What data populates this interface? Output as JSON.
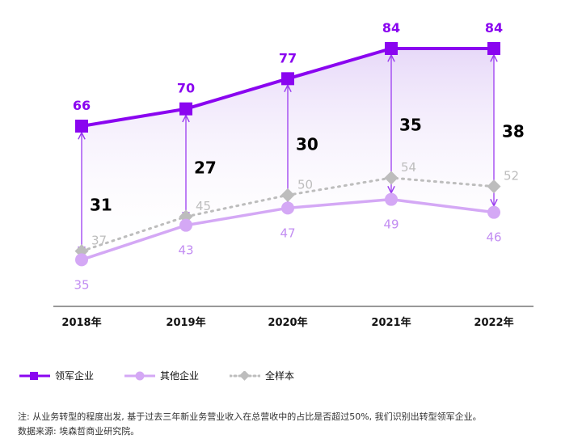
{
  "chart_data": {
    "type": "line",
    "categories": [
      "2018年",
      "2019年",
      "2020年",
      "2021年",
      "2022年"
    ],
    "series": [
      {
        "name": "领军企业",
        "values": [
          66,
          70,
          77,
          84,
          84
        ],
        "color": "#8a05f0",
        "marker": "square"
      },
      {
        "name": "其他企业",
        "values": [
          35,
          43,
          47,
          49,
          46
        ],
        "color": "#d4a8f5",
        "marker": "circle"
      },
      {
        "name": "全样本",
        "values": [
          37,
          45,
          50,
          54,
          52
        ],
        "color": "#bdbdbd",
        "marker": "diamond",
        "dashed": true
      }
    ],
    "gaps": [
      31,
      27,
      30,
      35,
      38
    ],
    "ylim": [
      30,
      88
    ]
  },
  "legend": {
    "items": [
      {
        "label": "领军企业"
      },
      {
        "label": "其他企业"
      },
      {
        "label": "全样本"
      }
    ]
  },
  "notes": {
    "line1": "注: 从业务转型的程度出发, 基于过去三年新业务营业收入在总营收中的占比是否超过50%, 我们识别出转型领军企业。",
    "line2": "数据来源: 埃森哲商业研究院。"
  }
}
